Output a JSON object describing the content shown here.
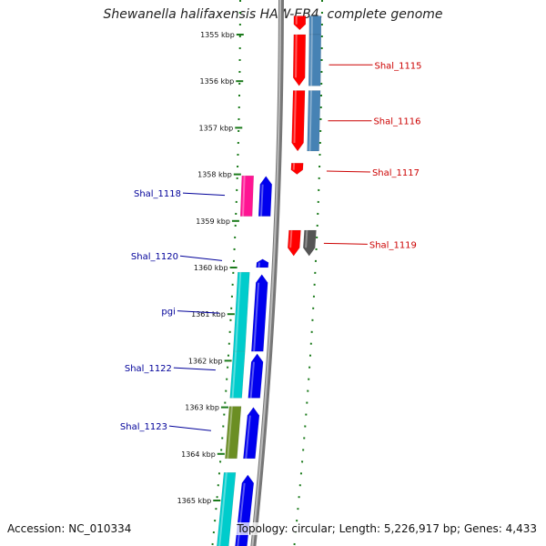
{
  "title": "Shewanella halifaxensis HAW-EB4, complete genome",
  "accession": "Accession: NC_010334",
  "topology": "Topology: circular; Length: 5,226,917 bp; Genes: 4,433",
  "colors": {
    "backbone": "#888888",
    "dotted_guides": "#1a7a1a",
    "label_left": "#000099",
    "label_right": "#cc0000",
    "red_gene": "#ff0000",
    "blue_gene": "#0000ee",
    "steelblue_gene": "#4682b4",
    "cyan_gene": "#00cccc",
    "magenta_gene": "#ff1493",
    "olive_gene": "#6b8e23",
    "gray_gene": "#555555"
  },
  "ticks": [
    {
      "label": "1355 kbp",
      "kbp": 1355
    },
    {
      "label": "1356 kbp",
      "kbp": 1356
    },
    {
      "label": "1357 kbp",
      "kbp": 1357
    },
    {
      "label": "1358 kbp",
      "kbp": 1358
    },
    {
      "label": "1359 kbp",
      "kbp": 1359
    },
    {
      "label": "1360 kbp",
      "kbp": 1360
    },
    {
      "label": "1361 kbp",
      "kbp": 1361
    },
    {
      "label": "1362 kbp",
      "kbp": 1362
    },
    {
      "label": "1363 kbp",
      "kbp": 1363
    },
    {
      "label": "1364 kbp",
      "kbp": 1364
    },
    {
      "label": "1365 kbp",
      "kbp": 1365
    }
  ],
  "genes": [
    {
      "kbp_start": 1354.6,
      "kbp_end": 1354.9,
      "color": "red_gene",
      "track": "r1",
      "dir": "down"
    },
    {
      "kbp_start": 1354.6,
      "kbp_end": 1355.0,
      "color": "steelblue_gene",
      "track": "r2",
      "dir": "none"
    },
    {
      "kbp_start": 1355.0,
      "kbp_end": 1356.1,
      "color": "red_gene",
      "track": "r1",
      "dir": "down"
    },
    {
      "kbp_start": 1355.0,
      "kbp_end": 1356.1,
      "color": "steelblue_gene",
      "track": "r2",
      "dir": "none"
    },
    {
      "kbp_start": 1356.2,
      "kbp_end": 1357.5,
      "color": "red_gene",
      "track": "r1",
      "dir": "down"
    },
    {
      "kbp_start": 1356.2,
      "kbp_end": 1357.5,
      "color": "steelblue_gene",
      "track": "r2",
      "dir": "none"
    },
    {
      "kbp_start": 1357.76,
      "kbp_end": 1358.0,
      "color": "red_gene",
      "track": "r1",
      "dir": "down"
    },
    {
      "kbp_start": 1358.03,
      "kbp_end": 1358.9,
      "color": "magenta_gene",
      "track": "l2",
      "dir": "none"
    },
    {
      "kbp_start": 1358.04,
      "kbp_end": 1358.9,
      "color": "blue_gene",
      "track": "l1",
      "dir": "up"
    },
    {
      "kbp_start": 1359.2,
      "kbp_end": 1359.75,
      "color": "red_gene",
      "track": "r1",
      "dir": "down"
    },
    {
      "kbp_start": 1359.2,
      "kbp_end": 1359.75,
      "color": "gray_gene",
      "track": "r2",
      "dir": "down"
    },
    {
      "kbp_start": 1359.82,
      "kbp_end": 1360.0,
      "color": "blue_gene",
      "track": "l1",
      "dir": "up"
    },
    {
      "kbp_start": 1360.1,
      "kbp_end": 1361.8,
      "color": "cyan_gene",
      "track": "l2",
      "dir": "none"
    },
    {
      "kbp_start": 1360.15,
      "kbp_end": 1361.8,
      "color": "blue_gene",
      "track": "l1",
      "dir": "up"
    },
    {
      "kbp_start": 1361.8,
      "kbp_end": 1362.8,
      "color": "cyan_gene",
      "track": "l2",
      "dir": "none"
    },
    {
      "kbp_start": 1361.85,
      "kbp_end": 1362.8,
      "color": "blue_gene",
      "track": "l1",
      "dir": "up"
    },
    {
      "kbp_start": 1362.98,
      "kbp_end": 1364.1,
      "color": "olive_gene",
      "track": "l2",
      "dir": "none"
    },
    {
      "kbp_start": 1363.0,
      "kbp_end": 1364.1,
      "color": "blue_gene",
      "track": "l1",
      "dir": "up"
    },
    {
      "kbp_start": 1364.4,
      "kbp_end": 1366.2,
      "color": "cyan_gene",
      "track": "l2",
      "dir": "none"
    },
    {
      "kbp_start": 1364.45,
      "kbp_end": 1366.2,
      "color": "blue_gene",
      "track": "l1",
      "dir": "up"
    }
  ],
  "labels": [
    {
      "text": "Shal_1115",
      "side": "right",
      "kbp": 1355.65,
      "target_kbp": 1355.65
    },
    {
      "text": "Shal_1116",
      "side": "right",
      "kbp": 1356.85,
      "target_kbp": 1356.85
    },
    {
      "text": "Shal_1117",
      "side": "right",
      "kbp": 1357.95,
      "target_kbp": 1357.93
    },
    {
      "text": "Shal_1118",
      "side": "left",
      "kbp": 1358.4,
      "target_kbp": 1358.45
    },
    {
      "text": "Shal_1119",
      "side": "right",
      "kbp": 1359.5,
      "target_kbp": 1359.48
    },
    {
      "text": "Shal_1120",
      "side": "left",
      "kbp": 1359.75,
      "target_kbp": 1359.85
    },
    {
      "text": "pgi",
      "side": "left",
      "kbp": 1360.93,
      "target_kbp": 1360.98
    },
    {
      "text": "Shal_1122",
      "side": "left",
      "kbp": 1362.15,
      "target_kbp": 1362.2
    },
    {
      "text": "Shal_1123",
      "side": "left",
      "kbp": 1363.4,
      "target_kbp": 1363.5
    }
  ]
}
